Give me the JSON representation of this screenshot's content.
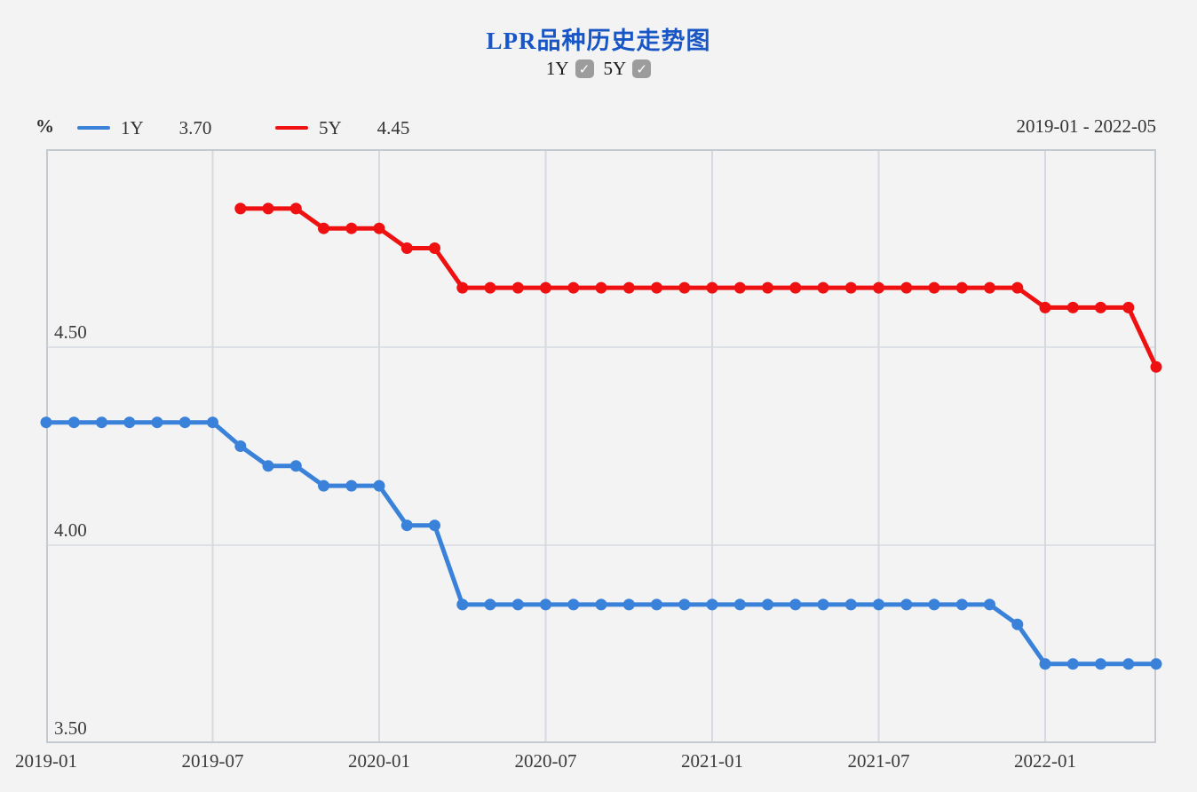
{
  "page": {
    "background": "#f3f3f4"
  },
  "header": {
    "title": "LPR品种历史走势图",
    "title_color": "#1856c5",
    "toggles": [
      {
        "label": "1Y",
        "checked": true,
        "check_glyph": "✓"
      },
      {
        "label": "5Y",
        "checked": true,
        "check_glyph": "✓"
      }
    ]
  },
  "legend": {
    "unit": "%",
    "items": [
      {
        "name": "1Y",
        "value": "3.70",
        "color": "#3a82d9"
      },
      {
        "name": "5Y",
        "value": "4.45",
        "color": "#ef1111"
      }
    ],
    "date_range": "2019-01 - 2022-05"
  },
  "chart_data": {
    "type": "line",
    "title": "LPR品种历史走势图",
    "xlabel": "",
    "ylabel": "%",
    "x_start_month": "2019-01",
    "x_end_month": "2022-05",
    "months_total": 41,
    "ylim": [
      3.5,
      5.0
    ],
    "y_gridlines": [
      4.0,
      4.5
    ],
    "y_tick_labels": [
      {
        "label": "3.50",
        "value": 3.5
      },
      {
        "label": "4.00",
        "value": 4.0
      },
      {
        "label": "4.50",
        "value": 4.5
      }
    ],
    "x_ticks": [
      {
        "label": "2019-01",
        "month_index": 0
      },
      {
        "label": "2019-07",
        "month_index": 6
      },
      {
        "label": "2020-01",
        "month_index": 12
      },
      {
        "label": "2020-07",
        "month_index": 18
      },
      {
        "label": "2021-01",
        "month_index": 24
      },
      {
        "label": "2021-07",
        "month_index": 30
      },
      {
        "label": "2022-01",
        "month_index": 36
      }
    ],
    "grid": true,
    "legend_position": "top-left",
    "series": [
      {
        "name": "1Y",
        "color": "#3a82d9",
        "start_month": "2019-01",
        "start_index": 0,
        "values": [
          4.31,
          4.31,
          4.31,
          4.31,
          4.31,
          4.31,
          4.31,
          4.25,
          4.2,
          4.2,
          4.15,
          4.15,
          4.15,
          4.05,
          4.05,
          3.85,
          3.85,
          3.85,
          3.85,
          3.85,
          3.85,
          3.85,
          3.85,
          3.85,
          3.85,
          3.85,
          3.85,
          3.85,
          3.85,
          3.85,
          3.85,
          3.85,
          3.85,
          3.85,
          3.85,
          3.8,
          3.7,
          3.7,
          3.7,
          3.7,
          3.7
        ]
      },
      {
        "name": "5Y",
        "color": "#ef1111",
        "start_month": "2019-08",
        "start_index": 7,
        "values": [
          4.85,
          4.85,
          4.85,
          4.8,
          4.8,
          4.8,
          4.75,
          4.75,
          4.65,
          4.65,
          4.65,
          4.65,
          4.65,
          4.65,
          4.65,
          4.65,
          4.65,
          4.65,
          4.65,
          4.65,
          4.65,
          4.65,
          4.65,
          4.65,
          4.65,
          4.65,
          4.65,
          4.65,
          4.65,
          4.6,
          4.6,
          4.6,
          4.6,
          4.45
        ]
      }
    ],
    "style": {
      "plot_border_color": "#c5c9d0",
      "gridline_color": "#d6d9df",
      "line_width": 5,
      "point_radius": 6.5
    }
  }
}
